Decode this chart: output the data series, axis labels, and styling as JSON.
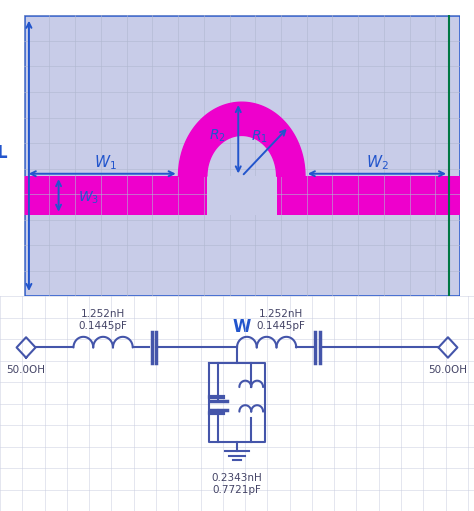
{
  "bg_top": "#c8cce8",
  "bg_bottom": "#eaedf5",
  "grid_color_top": "#b0b8d0",
  "grid_color_bottom": "#c8cce0",
  "magenta": "#ee00cc",
  "blue_arrow": "#2255cc",
  "circuit_blue": "#4455aa",
  "green_line": "#007744",
  "W1_label": "$W_1$",
  "W2_label": "$W_2$",
  "W3_label": "$W_3$",
  "R1_label": "$R_1$",
  "R2_label": "$R_2$",
  "L_label": "L",
  "W_label": "W",
  "label_L1": "1.252nH\n0.1445pF",
  "label_L2": "1.252nH\n0.1445pF",
  "label_shunt": "0.2343nH\n0.7721pF",
  "ohm_left": "50.0OH",
  "ohm_right": "50.0OH"
}
